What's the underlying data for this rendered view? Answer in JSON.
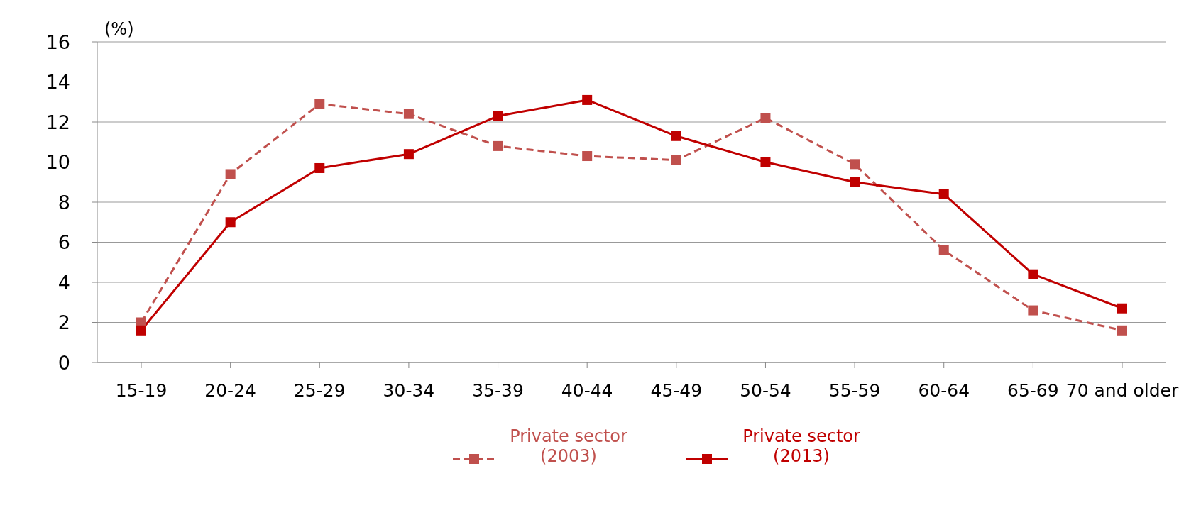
{
  "chart_data": {
    "type": "line",
    "ylabel": "(%)",
    "categories": [
      "15-19",
      "20-24",
      "25-29",
      "30-34",
      "35-39",
      "40-44",
      "45-49",
      "50-54",
      "55-59",
      "60-64",
      "65-69",
      "70 and older"
    ],
    "series": [
      {
        "name": "Private sector (2003)",
        "color": "#c0504d",
        "line_style": "dashed",
        "values": [
          2.0,
          9.4,
          12.9,
          12.4,
          10.8,
          10.3,
          10.1,
          12.2,
          9.9,
          5.6,
          2.6,
          1.6
        ]
      },
      {
        "name": "Private sector (2013)",
        "color": "#c00000",
        "line_style": "solid",
        "values": [
          1.6,
          7.0,
          9.7,
          10.4,
          12.3,
          13.1,
          11.3,
          10.0,
          9.0,
          8.4,
          4.4,
          2.7
        ]
      }
    ],
    "ylim": [
      0,
      16
    ],
    "yticks": [
      0,
      2,
      4,
      6,
      8,
      10,
      12,
      14,
      16
    ],
    "grid": "y",
    "legend": "bottom",
    "marker": "square"
  }
}
